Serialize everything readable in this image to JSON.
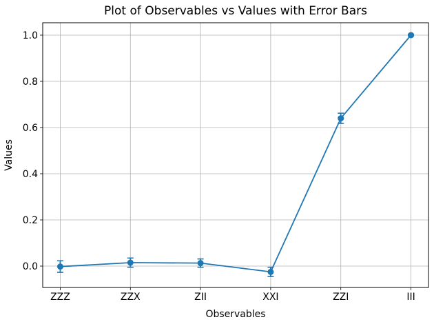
{
  "chart_data": {
    "type": "line",
    "title": "Plot of Observables vs Values with Error Bars",
    "xlabel": "Observables",
    "ylabel": "Values",
    "categories": [
      "ZZZ",
      "ZZX",
      "ZII",
      "XXI",
      "ZZI",
      "III"
    ],
    "series": [
      {
        "name": "values",
        "values": [
          -0.002,
          0.015,
          0.013,
          -0.025,
          0.64,
          1.0
        ],
        "errors": [
          0.025,
          0.02,
          0.018,
          0.02,
          0.022,
          0.004
        ]
      }
    ],
    "yticks": [
      0.0,
      0.2,
      0.4,
      0.6,
      0.8,
      1.0
    ],
    "ytick_labels": [
      "0.0",
      "0.2",
      "0.4",
      "0.6",
      "0.8",
      "1.0"
    ],
    "ylim": [
      -0.0925,
      1.0537
    ],
    "xlim": [
      -0.25,
      5.25
    ],
    "grid": true,
    "legend_position": "none",
    "marker": "o",
    "line_color": "#1f77b4",
    "grid_color": "#b0b0b0",
    "spine_color": "#000000",
    "text_color": "#000000"
  }
}
